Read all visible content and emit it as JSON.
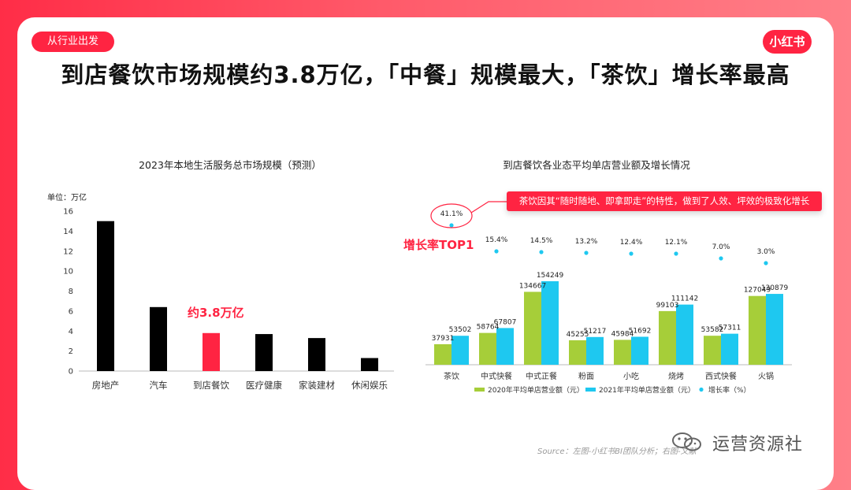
{
  "header": {
    "section_tag": "从行业出发",
    "logo_text": "小红书",
    "title": "到店餐饮市场规模约3.8万亿，「中餐」规模最大，「茶饮」增长率最高"
  },
  "colors": {
    "brand": "#ff2442",
    "bar_black": "#000000",
    "bar_2020": "#a6ce39",
    "bar_2021": "#1ec8f0",
    "growth_dot": "#1ec8f0"
  },
  "chart_data": [
    {
      "type": "bar",
      "title": "2023年本地生活服务总市场规模（预测）",
      "ylabel": "单位：万亿",
      "ylim": [
        0,
        16
      ],
      "yticks": [
        0,
        2,
        4,
        6,
        8,
        10,
        12,
        14,
        16
      ],
      "grid": false,
      "categories": [
        "房地产",
        "汽车",
        "到店餐饮",
        "医疗健康",
        "家装建材",
        "休闲娱乐"
      ],
      "values": [
        15,
        6.4,
        3.8,
        3.7,
        3.3,
        1.3
      ],
      "highlight_index": 2,
      "annotation": "约3.8万亿"
    },
    {
      "type": "bar",
      "title": "到店餐饮各业态平均单店营业额及增长情况",
      "grid": false,
      "legend_position": "bottom",
      "categories": [
        "茶饮",
        "中式快餐",
        "中式正餐",
        "粉面",
        "小吃",
        "烧烤",
        "西式快餐",
        "火锅"
      ],
      "series": [
        {
          "name": "2020年平均单店营业额（元）",
          "values": [
            37931,
            58764,
            134667,
            45255,
            45984,
            99103,
            53582,
            127049
          ]
        },
        {
          "name": "2021年平均单店营业额（元）",
          "values": [
            53502,
            67807,
            154249,
            51217,
            51692,
            111142,
            57311,
            130879
          ]
        }
      ],
      "growth": {
        "name": "增长率（%）",
        "values": [
          41.1,
          15.4,
          14.5,
          13.2,
          12.4,
          12.1,
          7.0,
          3.0
        ],
        "labels": [
          "41.1%",
          "15.4%",
          "14.5%",
          "13.2%",
          "12.4%",
          "12.1%",
          "7.0%",
          "3.0%"
        ]
      },
      "callout": "茶饮因其“随时随地、即拿即走”的特性，做到了人效、坪效的极致化增长",
      "highlight_label": "增长率TOP1"
    }
  ],
  "footer": {
    "source": "Source：左图-小红书BI团队分析；右图-文献",
    "watermark": "运营资源社"
  }
}
